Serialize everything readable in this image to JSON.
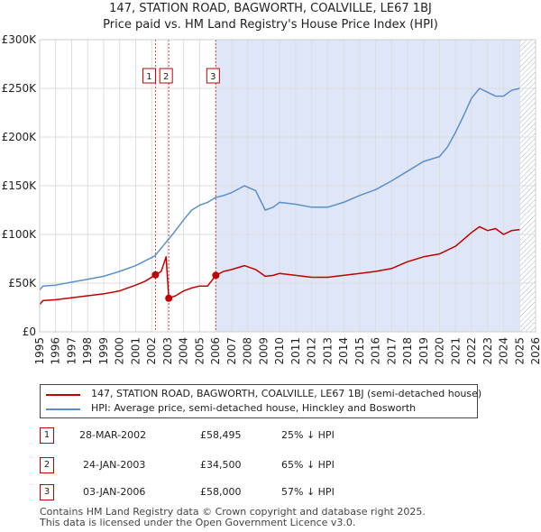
{
  "title_line1": "147, STATION ROAD, BAGWORTH, COALVILLE, LE67 1BJ",
  "title_line2": "Price paid vs. HM Land Registry's House Price Index (HPI)",
  "chart_data": {
    "type": "line",
    "xlim": [
      1995,
      2026
    ],
    "ylim": [
      0,
      300000
    ],
    "y_ticks": [
      {
        "value": 0,
        "label": "£0"
      },
      {
        "value": 50000,
        "label": "£50K"
      },
      {
        "value": 100000,
        "label": "£100K"
      },
      {
        "value": 150000,
        "label": "£150K"
      },
      {
        "value": 200000,
        "label": "£200K"
      },
      {
        "value": 250000,
        "label": "£250K"
      },
      {
        "value": 300000,
        "label": "£300K"
      }
    ],
    "x_ticks": [
      "1995",
      "1996",
      "1997",
      "1998",
      "1999",
      "2000",
      "2001",
      "2002",
      "2003",
      "2004",
      "2005",
      "2006",
      "2007",
      "2008",
      "2009",
      "2010",
      "2011",
      "2012",
      "2013",
      "2014",
      "2015",
      "2016",
      "2017",
      "2018",
      "2019",
      "2020",
      "2021",
      "2022",
      "2023",
      "2024",
      "2025",
      "2026"
    ],
    "grid": true,
    "shaded_from": 2006.01,
    "hatched_from": 2025.0,
    "series": [
      {
        "name": "147, STATION ROAD, BAGWORTH, COALVILLE, LE67 1BJ (semi-detached house)",
        "color": "#c00000",
        "points": [
          [
            1995,
            28000
          ],
          [
            1995.2,
            32000
          ],
          [
            1996,
            33000
          ],
          [
            1997,
            35000
          ],
          [
            1998,
            37000
          ],
          [
            1999,
            39000
          ],
          [
            2000,
            42000
          ],
          [
            2001,
            48000
          ],
          [
            2001.6,
            52000
          ],
          [
            2002.24,
            58495
          ],
          [
            2002.6,
            62000
          ],
          [
            2002.9,
            77000
          ],
          [
            2003.07,
            34500
          ],
          [
            2003.5,
            37000
          ],
          [
            2004,
            42000
          ],
          [
            2004.5,
            45000
          ],
          [
            2005,
            47000
          ],
          [
            2005.5,
            47000
          ],
          [
            2006.01,
            58000
          ],
          [
            2006.5,
            62000
          ],
          [
            2007,
            64000
          ],
          [
            2007.8,
            68000
          ],
          [
            2008.5,
            64000
          ],
          [
            2009.1,
            57000
          ],
          [
            2009.6,
            58000
          ],
          [
            2010,
            60000
          ],
          [
            2011,
            58000
          ],
          [
            2012,
            56000
          ],
          [
            2013,
            56000
          ],
          [
            2014,
            58000
          ],
          [
            2015,
            60000
          ],
          [
            2016,
            62000
          ],
          [
            2017,
            65000
          ],
          [
            2018,
            72000
          ],
          [
            2019,
            77000
          ],
          [
            2020,
            80000
          ],
          [
            2021,
            88000
          ],
          [
            2021.5,
            95000
          ],
          [
            2022,
            102000
          ],
          [
            2022.5,
            108000
          ],
          [
            2023,
            104000
          ],
          [
            2023.5,
            106000
          ],
          [
            2024,
            100000
          ],
          [
            2024.5,
            104000
          ],
          [
            2025,
            105000
          ]
        ]
      },
      {
        "name": "HPI: Average price, semi-detached house, Hinckley and Bosworth",
        "color": "#5b8fc9",
        "points": [
          [
            1995,
            43000
          ],
          [
            1995.2,
            47000
          ],
          [
            1996,
            48000
          ],
          [
            1997,
            51000
          ],
          [
            1998,
            54000
          ],
          [
            1999,
            57000
          ],
          [
            2000,
            62000
          ],
          [
            2001,
            68000
          ],
          [
            2001.6,
            73000
          ],
          [
            2002.2,
            78000
          ],
          [
            2002.8,
            90000
          ],
          [
            2003.3,
            100000
          ],
          [
            2004,
            115000
          ],
          [
            2004.5,
            125000
          ],
          [
            2005,
            130000
          ],
          [
            2005.5,
            133000
          ],
          [
            2006,
            138000
          ],
          [
            2006.5,
            140000
          ],
          [
            2007,
            143000
          ],
          [
            2007.8,
            150000
          ],
          [
            2008.5,
            145000
          ],
          [
            2009.1,
            125000
          ],
          [
            2009.6,
            128000
          ],
          [
            2010,
            133000
          ],
          [
            2011,
            131000
          ],
          [
            2012,
            128000
          ],
          [
            2013,
            128000
          ],
          [
            2014,
            133000
          ],
          [
            2015,
            140000
          ],
          [
            2016,
            146000
          ],
          [
            2017,
            155000
          ],
          [
            2018,
            165000
          ],
          [
            2019,
            175000
          ],
          [
            2020,
            180000
          ],
          [
            2020.5,
            190000
          ],
          [
            2021,
            205000
          ],
          [
            2021.5,
            222000
          ],
          [
            2022,
            240000
          ],
          [
            2022.5,
            250000
          ],
          [
            2023,
            246000
          ],
          [
            2023.5,
            242000
          ],
          [
            2024,
            242000
          ],
          [
            2024.5,
            248000
          ],
          [
            2025,
            250000
          ]
        ]
      }
    ],
    "sales": [
      {
        "num": "1",
        "x": 2002.24,
        "price": 58495
      },
      {
        "num": "2",
        "x": 2003.07,
        "price": 34500
      },
      {
        "num": "3",
        "x": 2006.01,
        "price": 58000
      }
    ]
  },
  "legend": {
    "property": "147, STATION ROAD, BAGWORTH, COALVILLE, LE67 1BJ (semi-detached house)",
    "hpi": "HPI: Average price, semi-detached house, Hinckley and Bosworth"
  },
  "transactions": [
    {
      "num": "1",
      "date": "28-MAR-2002",
      "price": "£58,495",
      "change": "25% ↓ HPI"
    },
    {
      "num": "2",
      "date": "24-JAN-2003",
      "price": "£34,500",
      "change": "65% ↓ HPI"
    },
    {
      "num": "3",
      "date": "03-JAN-2006",
      "price": "£58,000",
      "change": "57% ↓ HPI"
    }
  ],
  "footer": {
    "line1": "Contains HM Land Registry data © Crown copyright and database right 2025.",
    "line2": "This data is licensed under the Open Government Licence v3.0."
  },
  "colors": {
    "property": "#c00000",
    "hpi": "#5b8fc9",
    "plot_bg": "#dfe6f7",
    "grid": "#ffffff",
    "marker_line": "#c00000"
  }
}
